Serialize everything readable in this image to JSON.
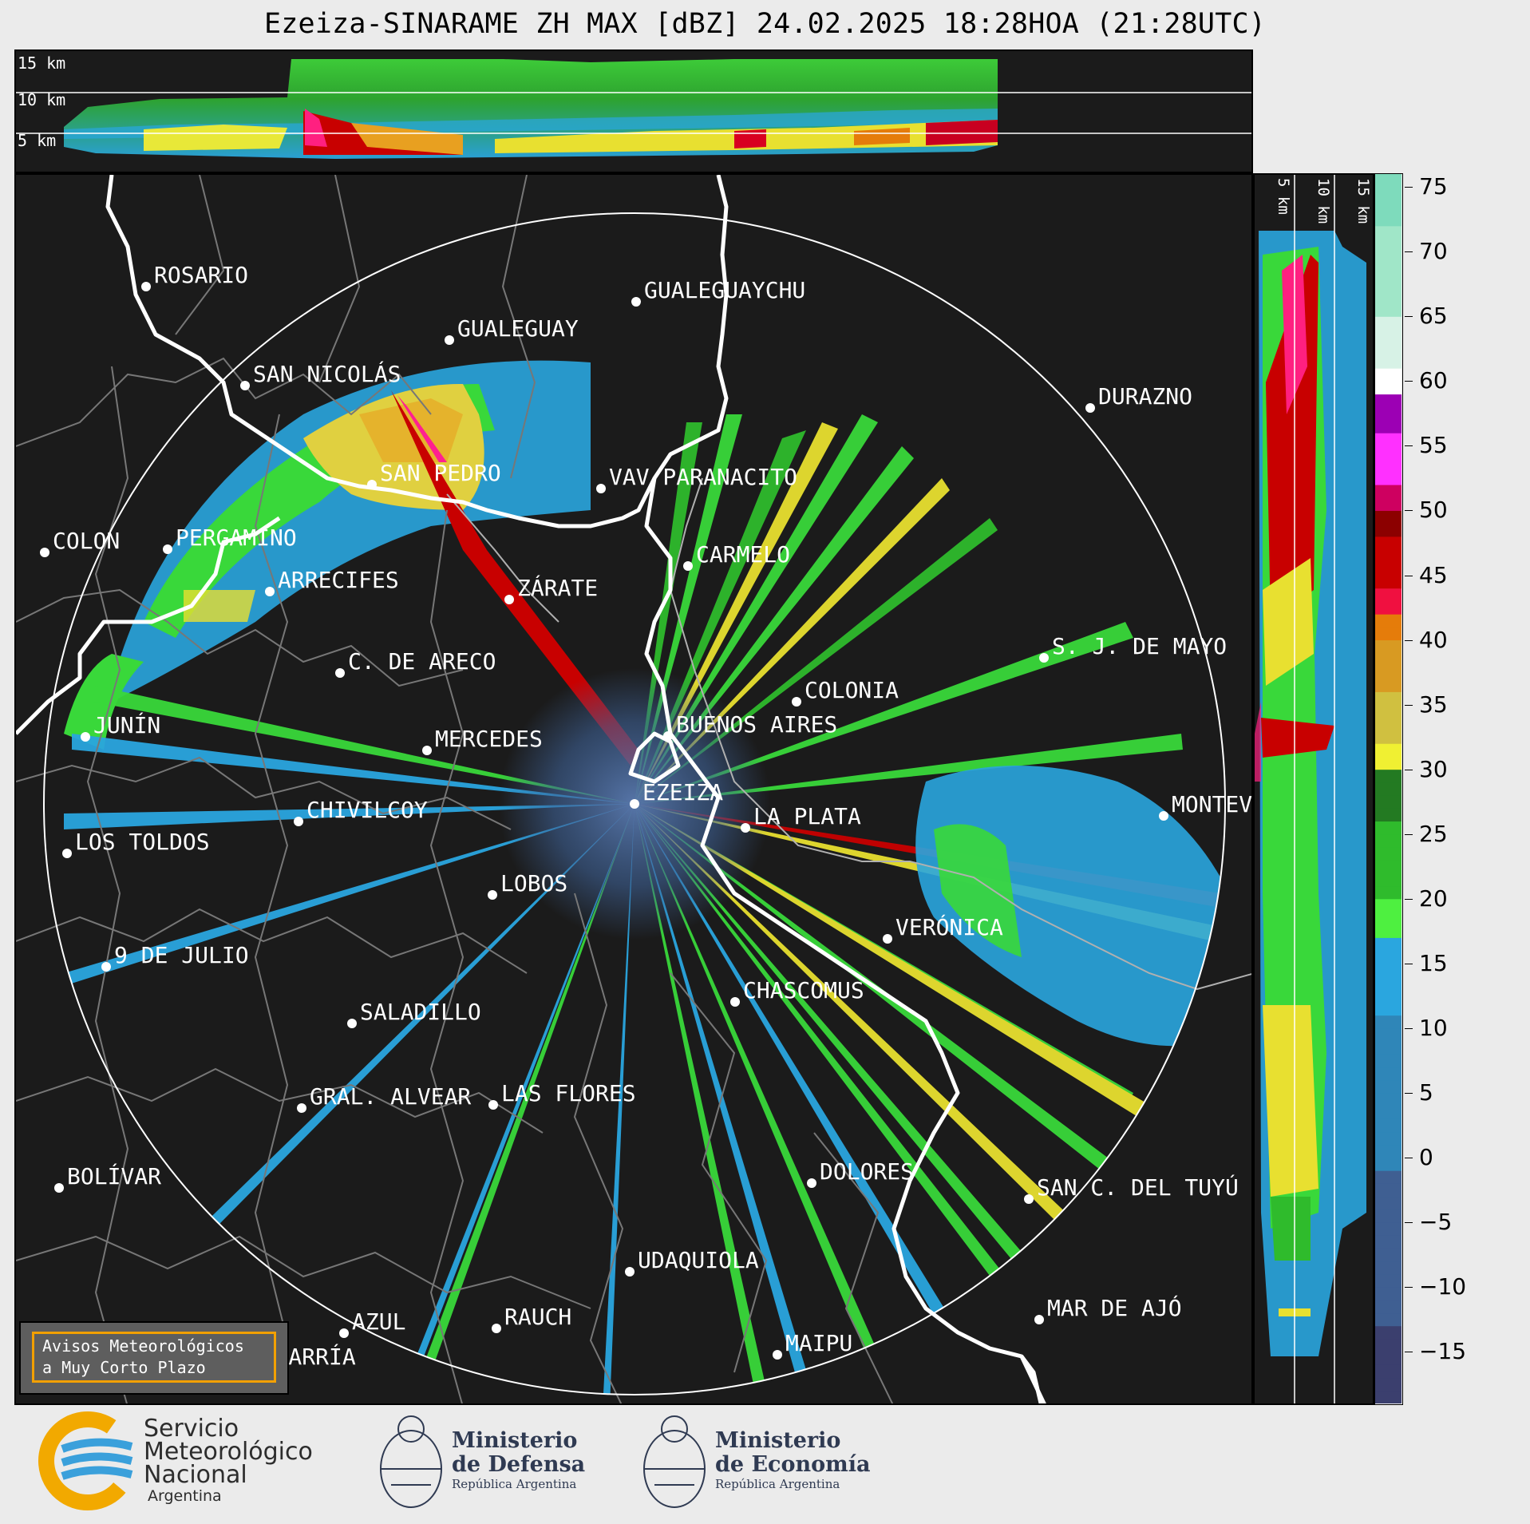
{
  "title": "Ezeiza-SINARAME ZH MAX [dBZ] 24.02.2025 18:28HOA (21:28UTC)",
  "top_panel": {
    "height_labels": [
      "15 km",
      "10 km",
      "5 km"
    ]
  },
  "side_panel": {
    "height_labels": [
      "5 km",
      "10 km",
      "15 km"
    ]
  },
  "map": {
    "radar_site": "EZEIZA",
    "cities": [
      {
        "name": "ROSARIO"
      },
      {
        "name": "GUALEGUAYCHU"
      },
      {
        "name": "GUALEGUAY"
      },
      {
        "name": "SAN NICOLÁS"
      },
      {
        "name": "DURAZNO"
      },
      {
        "name": "SAN PEDRO"
      },
      {
        "name": "VAV PARANACITO"
      },
      {
        "name": "COLON"
      },
      {
        "name": "PERGAMINO"
      },
      {
        "name": "CARMELO"
      },
      {
        "name": "ARRECIFES"
      },
      {
        "name": "ZÁRATE"
      },
      {
        "name": "S. J. DE MAYO"
      },
      {
        "name": "C. DE ARECO"
      },
      {
        "name": "COLONIA"
      },
      {
        "name": "JUNÍN"
      },
      {
        "name": "BUENOS AIRES"
      },
      {
        "name": "MERCEDES"
      },
      {
        "name": "EZEIZA"
      },
      {
        "name": "MONTEV"
      },
      {
        "name": "CHIVILCOY"
      },
      {
        "name": "LA PLATA"
      },
      {
        "name": "LOS TOLDOS"
      },
      {
        "name": "LOBOS"
      },
      {
        "name": "VERÓNICA"
      },
      {
        "name": "9 DE JULIO"
      },
      {
        "name": "CHASCOMUS"
      },
      {
        "name": "SALADILLO"
      },
      {
        "name": "GRAL. ALVEAR"
      },
      {
        "name": "LAS FLORES"
      },
      {
        "name": "BOLÍVAR"
      },
      {
        "name": "DOLORES"
      },
      {
        "name": "SAN C. DEL TUYÚ"
      },
      {
        "name": "UDAQUIOLA"
      },
      {
        "name": "AZUL"
      },
      {
        "name": "RAUCH"
      },
      {
        "name": "MAR DE AJÓ"
      },
      {
        "name": "OLAVARRÍA"
      },
      {
        "name": "MAIPU"
      }
    ]
  },
  "warning_badge": {
    "line1": "Avisos Meteorológicos",
    "line2": "a Muy Corto Plazo",
    "border_color": "#f2a000"
  },
  "colorbar": {
    "unit": "dBZ",
    "range": [
      -19,
      76
    ],
    "ticks": [
      "75",
      "70",
      "65",
      "60",
      "55",
      "50",
      "45",
      "40",
      "35",
      "30",
      "25",
      "20",
      "15",
      "10",
      "5",
      "0",
      "−5",
      "−10",
      "−15"
    ],
    "tick_values": [
      75,
      70,
      65,
      60,
      55,
      50,
      45,
      40,
      35,
      30,
      25,
      20,
      15,
      10,
      5,
      0,
      -5,
      -10,
      -15
    ],
    "colors": [
      {
        "from": -19,
        "to": 17,
        "gradient": [
          "#3b3f6e",
          "#3f5f92",
          "#2f86b8",
          "#2aa6df"
        ]
      },
      {
        "from": 17,
        "to": 30,
        "gradient": [
          "#4ef040",
          "#2fbb2c",
          "#237a22"
        ]
      },
      {
        "from": 30,
        "to": 42,
        "gradient": [
          "#f0f032",
          "#d0c040",
          "#d89a22",
          "#e57c0a"
        ]
      },
      {
        "from": 42,
        "to": 50,
        "gradient": [
          "#f01040",
          "#c80000",
          "#8c0000"
        ]
      },
      {
        "from": 50,
        "to": 59,
        "gradient": [
          "#ce0060",
          "#ff30ff",
          "#9c00b4"
        ]
      },
      {
        "from": 59,
        "to": 61,
        "gradient": [
          "#ffffff"
        ]
      },
      {
        "from": 61,
        "to": 76,
        "gradient": [
          "#d7f2e6",
          "#a0e6c8",
          "#7edbbc"
        ]
      }
    ]
  },
  "logos": {
    "smn_name": [
      "Servicio",
      "Meteorológico",
      "Nacional"
    ],
    "smn_country": "Argentina",
    "min1": {
      "title": [
        "Ministerio",
        "de Defensa"
      ],
      "sub": "República Argentina"
    },
    "min2": {
      "title": [
        "Ministerio",
        "de Economía"
      ],
      "sub": "República Argentina"
    }
  }
}
